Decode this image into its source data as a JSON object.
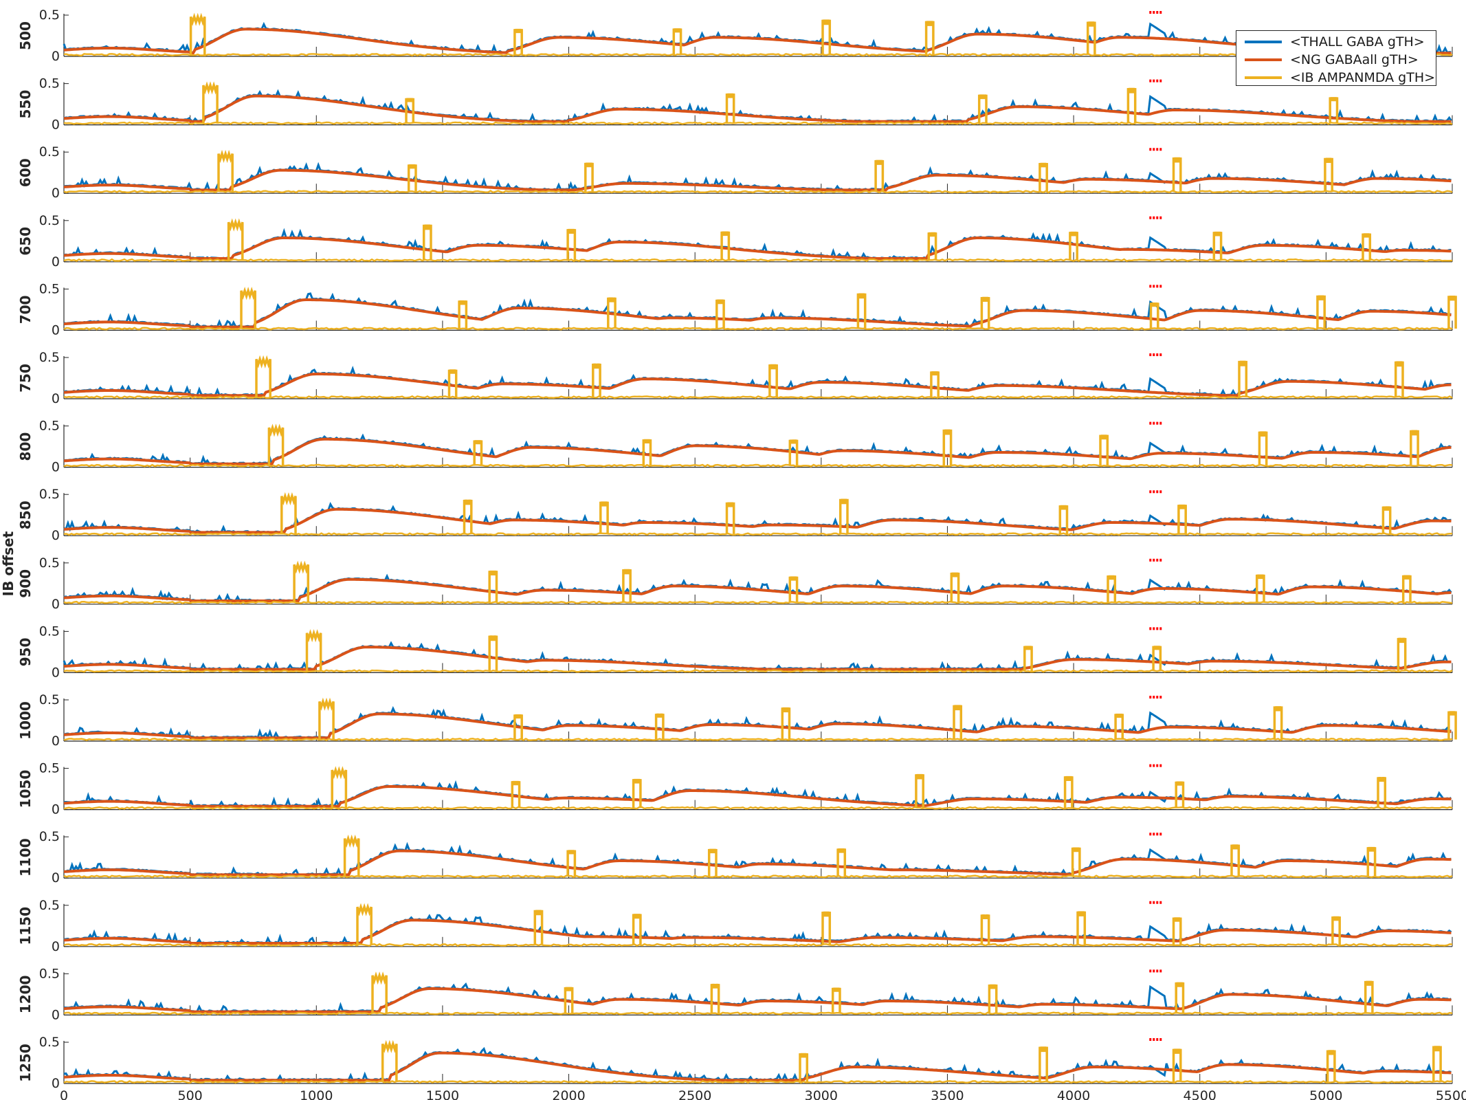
{
  "chart_data": {
    "type": "line",
    "ylabel": "IB offset",
    "x_ticks": [
      0,
      500,
      1000,
      1500,
      2000,
      2500,
      3000,
      3500,
      4000,
      4500,
      5000,
      5500
    ],
    "xlim": [
      0,
      5500
    ],
    "ylim": [
      0,
      0.5
    ],
    "y_ticks": [
      0,
      0.5
    ],
    "legend": {
      "placement": "top-right",
      "entries": [
        "<THALL GABA gTH>",
        "<NG GABAall gTH>",
        "<IB AMPANMDA gTH>"
      ]
    },
    "colors": {
      "thall": "#0072BD",
      "ng": "#D95319",
      "ib": "#EDB120",
      "marker": "#FF0000",
      "axis": "#262626"
    },
    "stimulus_marker": {
      "x_start": 4300,
      "x_end": 4350
    },
    "panels": [
      {
        "offset": "500",
        "ib_bursts": [
          530,
          1800,
          2430,
          3020,
          3430,
          4070
        ],
        "ng_peaks": [
          [
            720,
            0.33
          ],
          [
            1960,
            0.23
          ],
          [
            2580,
            0.23
          ],
          [
            3620,
            0.27
          ],
          [
            4180,
            0.23
          ]
        ],
        "thall_step": 0.4
      },
      {
        "offset": "550",
        "ib_bursts": [
          580,
          1370,
          2640,
          3640,
          4230,
          5030
        ],
        "ng_peaks": [
          [
            760,
            0.35
          ],
          [
            2200,
            0.19
          ],
          [
            3780,
            0.22
          ],
          [
            4400,
            0.18
          ]
        ],
        "thall_step": 0.35
      },
      {
        "offset": "600",
        "ib_bursts": [
          640,
          1380,
          2080,
          3230,
          3880,
          4410,
          5010
        ],
        "ng_peaks": [
          [
            860,
            0.28
          ],
          [
            2220,
            0.12
          ],
          [
            3460,
            0.22
          ],
          [
            4050,
            0.17
          ],
          [
            4550,
            0.18
          ],
          [
            5200,
            0.18
          ]
        ],
        "thall_step": 0.25
      },
      {
        "offset": "650",
        "ib_bursts": [
          680,
          1440,
          2010,
          2620,
          3440,
          4000,
          4570,
          5160
        ],
        "ng_peaks": [
          [
            870,
            0.29
          ],
          [
            1640,
            0.2
          ],
          [
            2200,
            0.24
          ],
          [
            3620,
            0.29
          ],
          [
            4200,
            0.15
          ],
          [
            4750,
            0.2
          ],
          [
            5300,
            0.14
          ]
        ],
        "thall_step": 0.3
      },
      {
        "offset": "700",
        "ib_bursts": [
          730,
          1580,
          2170,
          2600,
          3160,
          3650,
          4320,
          4980,
          5500
        ],
        "ng_peaks": [
          [
            960,
            0.37
          ],
          [
            1800,
            0.27
          ],
          [
            2400,
            0.15
          ],
          [
            2800,
            0.15
          ],
          [
            3800,
            0.24
          ],
          [
            4500,
            0.24
          ],
          [
            5180,
            0.23
          ]
        ],
        "thall_step": 0.35
      },
      {
        "offset": "750",
        "ib_bursts": [
          790,
          1540,
          2110,
          2810,
          3450,
          4670,
          5290
        ],
        "ng_peaks": [
          [
            1000,
            0.3
          ],
          [
            1740,
            0.18
          ],
          [
            2300,
            0.24
          ],
          [
            3000,
            0.2
          ],
          [
            3700,
            0.16
          ],
          [
            4850,
            0.21
          ],
          [
            5500,
            0.17
          ]
        ],
        "thall_step": 0.25
      },
      {
        "offset": "800",
        "ib_bursts": [
          840,
          1640,
          2310,
          2890,
          3500,
          4120,
          4750,
          5350
        ],
        "ng_peaks": [
          [
            1030,
            0.34
          ],
          [
            1850,
            0.24
          ],
          [
            2500,
            0.26
          ],
          [
            3080,
            0.2
          ],
          [
            3700,
            0.18
          ],
          [
            4350,
            0.17
          ],
          [
            4950,
            0.18
          ],
          [
            5500,
            0.24
          ]
        ],
        "thall_step": 0.3
      },
      {
        "offset": "850",
        "ib_bursts": [
          890,
          1600,
          2140,
          2640,
          3090,
          3960,
          4430,
          5240
        ],
        "ng_peaks": [
          [
            1080,
            0.32
          ],
          [
            1780,
            0.19
          ],
          [
            2300,
            0.16
          ],
          [
            2800,
            0.13
          ],
          [
            3280,
            0.19
          ],
          [
            4150,
            0.16
          ],
          [
            4620,
            0.2
          ],
          [
            5420,
            0.18
          ]
        ],
        "thall_step": 0.25
      },
      {
        "offset": "900",
        "ib_bursts": [
          940,
          1700,
          2230,
          2890,
          3530,
          4150,
          4740,
          5320
        ],
        "ng_peaks": [
          [
            1130,
            0.3
          ],
          [
            1900,
            0.17
          ],
          [
            2420,
            0.22
          ],
          [
            3080,
            0.22
          ],
          [
            3720,
            0.22
          ],
          [
            4340,
            0.19
          ],
          [
            4940,
            0.21
          ],
          [
            5500,
            0.14
          ]
        ],
        "thall_step": 0.3
      },
      {
        "offset": "950",
        "ib_bursts": [
          990,
          1700,
          3820,
          4330,
          5300
        ],
        "ng_peaks": [
          [
            1200,
            0.31
          ],
          [
            1900,
            0.15
          ],
          [
            4000,
            0.16
          ],
          [
            4550,
            0.14
          ],
          [
            5470,
            0.13
          ]
        ],
        "thall_step": 0.22
      },
      {
        "offset": "1000",
        "ib_bursts": [
          1040,
          1800,
          2360,
          2860,
          3540,
          4180,
          4810,
          5500
        ],
        "ng_peaks": [
          [
            1250,
            0.33
          ],
          [
            2000,
            0.19
          ],
          [
            2560,
            0.2
          ],
          [
            3060,
            0.21
          ],
          [
            3740,
            0.18
          ],
          [
            4380,
            0.17
          ],
          [
            5000,
            0.19
          ]
        ],
        "thall_step": 0.35
      },
      {
        "offset": "1050",
        "ib_bursts": [
          1090,
          1790,
          2270,
          3390,
          3980,
          4420,
          5220
        ],
        "ng_peaks": [
          [
            1290,
            0.28
          ],
          [
            1980,
            0.14
          ],
          [
            2480,
            0.23
          ],
          [
            3600,
            0.13
          ],
          [
            4180,
            0.15
          ],
          [
            4620,
            0.16
          ],
          [
            5420,
            0.13
          ]
        ],
        "thall_step": 0.22
      },
      {
        "offset": "1100",
        "ib_bursts": [
          1140,
          2010,
          2570,
          3080,
          4010,
          4640,
          5180
        ],
        "ng_peaks": [
          [
            1330,
            0.33
          ],
          [
            2200,
            0.21
          ],
          [
            2760,
            0.17
          ],
          [
            3280,
            0.1
          ],
          [
            4200,
            0.23
          ],
          [
            4840,
            0.21
          ],
          [
            5400,
            0.23
          ]
        ],
        "thall_step": 0.35
      },
      {
        "offset": "1150",
        "ib_bursts": [
          1190,
          1880,
          2270,
          3020,
          3650,
          4030,
          4410,
          5040
        ],
        "ng_peaks": [
          [
            1380,
            0.32
          ],
          [
            2080,
            0.12
          ],
          [
            2470,
            0.11
          ],
          [
            3220,
            0.11
          ],
          [
            3850,
            0.12
          ],
          [
            4600,
            0.2
          ],
          [
            5240,
            0.19
          ]
        ],
        "thall_step": 0.25
      },
      {
        "offset": "1200",
        "ib_bursts": [
          1250,
          2000,
          2580,
          3060,
          3680,
          4420,
          5170
        ],
        "ng_peaks": [
          [
            1450,
            0.32
          ],
          [
            2200,
            0.19
          ],
          [
            2780,
            0.17
          ],
          [
            3260,
            0.17
          ],
          [
            3880,
            0.13
          ],
          [
            4620,
            0.25
          ],
          [
            5370,
            0.19
          ]
        ],
        "thall_step": 0.35
      },
      {
        "offset": "1250",
        "ib_bursts": [
          1290,
          2930,
          3880,
          4410,
          5020,
          5440
        ],
        "ng_peaks": [
          [
            1490,
            0.37
          ],
          [
            3130,
            0.2
          ],
          [
            4080,
            0.2
          ],
          [
            4610,
            0.23
          ],
          [
            5220,
            0.15
          ]
        ],
        "thall_step": 0.22
      }
    ]
  }
}
